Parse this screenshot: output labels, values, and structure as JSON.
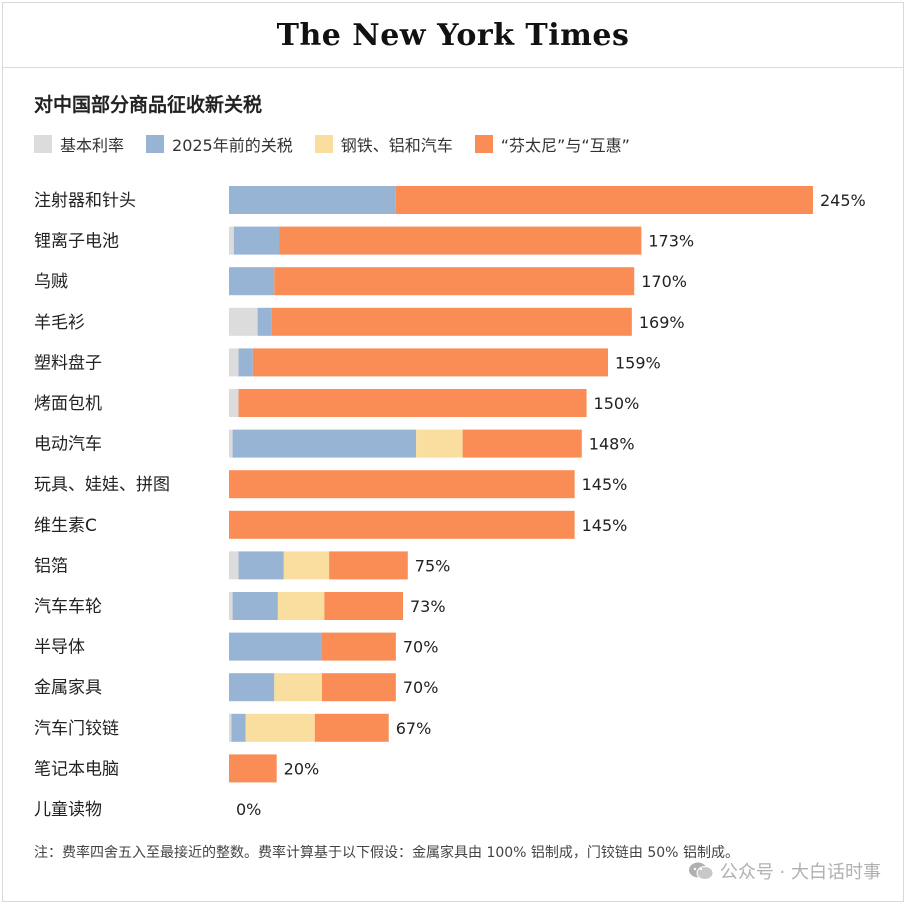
{
  "masthead": "The New York Times",
  "colors": {
    "base": "#dcdcdc",
    "pre2025": "#98b4d4",
    "steel": "#f9dea0",
    "fentanyl": "#f98d55"
  },
  "legend": [
    {
      "label": "基本利率",
      "color": "#dcdcdc"
    },
    {
      "label": "2025年前的关税",
      "color": "#98b4d4"
    },
    {
      "label": "钢铁、铝和汽车",
      "color": "#f9dea0"
    },
    {
      "label": "“芬太尼”与“互惠”",
      "color": "#f98d55"
    }
  ],
  "chart_data": {
    "type": "bar",
    "orientation": "horizontal",
    "stacked": true,
    "title": "对中国部分商品征收新关税",
    "categories": [
      "注射器和针头",
      "锂离子电池",
      "乌贼",
      "羊毛衫",
      "塑料盘子",
      "烤面包机",
      "电动汽车",
      "玩具、娃娃、拼图",
      "维生素C",
      "铝箔",
      "汽车车轮",
      "半导体",
      "金属家具",
      "汽车门铰链",
      "笔记本电脑",
      "儿童读物"
    ],
    "series": [
      {
        "name": "基本利率",
        "values": [
          0,
          2,
          0,
          12,
          4,
          4,
          1.5,
          0,
          0,
          4,
          1.5,
          0,
          0,
          1,
          0,
          0
        ]
      },
      {
        "name": "2025年前的关税",
        "values": [
          70,
          19,
          19,
          6,
          6,
          0,
          77,
          0,
          0,
          19,
          19,
          39,
          19,
          6,
          0,
          0
        ]
      },
      {
        "name": "钢铁、铝和汽车",
        "values": [
          0,
          0,
          0,
          0,
          0,
          0,
          19.5,
          0,
          0,
          19,
          19.5,
          0,
          20,
          29,
          0,
          0
        ]
      },
      {
        "name": "“芬太尼”与“互惠”",
        "values": [
          175,
          152,
          151,
          151,
          149,
          146,
          50,
          145,
          145,
          33,
          33,
          31,
          31,
          31,
          20,
          0
        ]
      }
    ],
    "totals": [
      "245%",
      "173%",
      "170%",
      "169%",
      "159%",
      "150%",
      "148%",
      "145%",
      "145%",
      "75%",
      "73%",
      "70%",
      "70%",
      "67%",
      "20%",
      "0%"
    ],
    "xlim": [
      0,
      245
    ],
    "grid": false,
    "legend_position": "top"
  },
  "note": "注：费率四舍五入至最接近的整数。费率计算基于以下假设：金属家具由 100% 铝制成，门铰链由 50% 铝制成。",
  "watermark": "公众号 · 大白话时事"
}
